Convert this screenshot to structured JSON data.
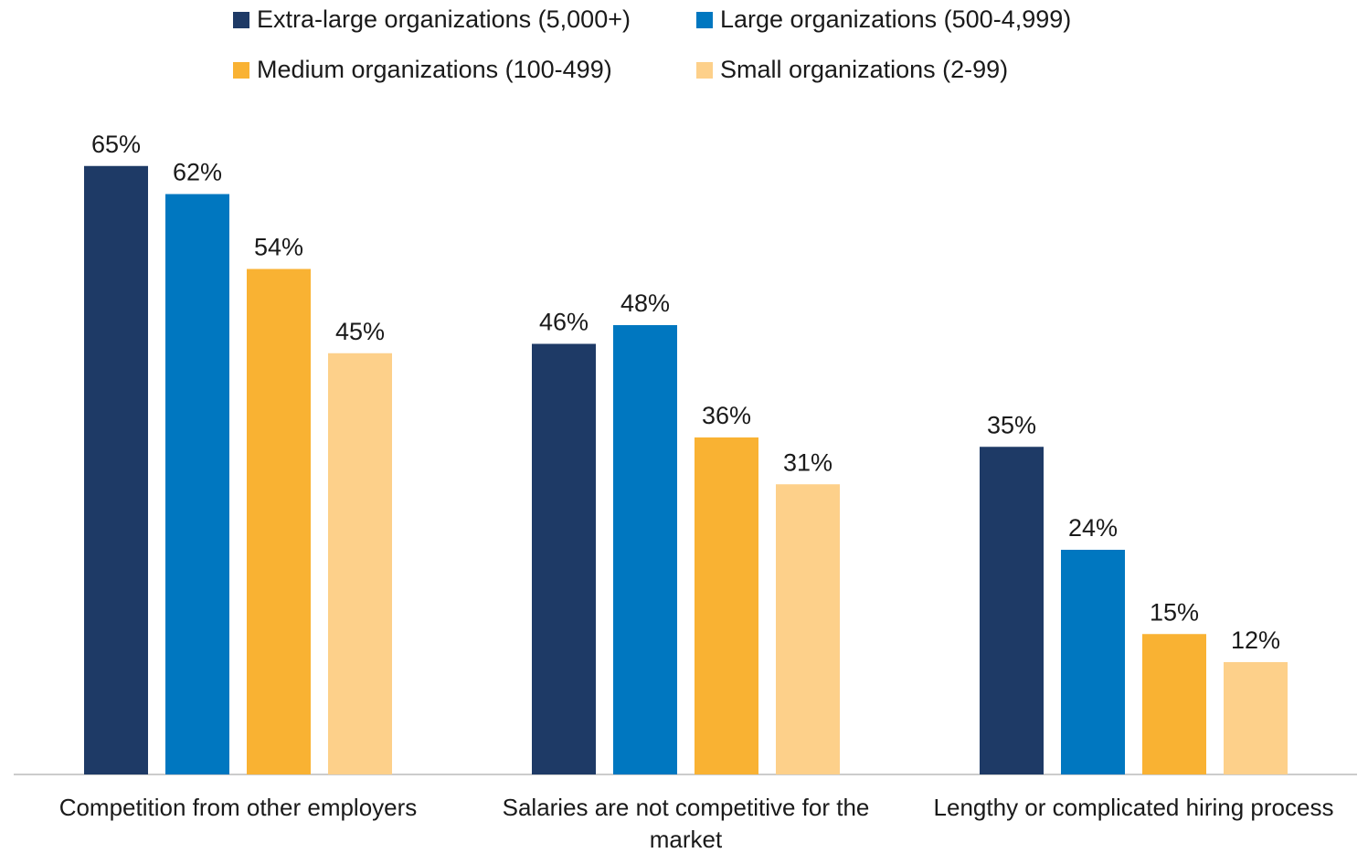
{
  "chart_data": {
    "type": "bar",
    "categories": [
      "Competition from other employers",
      "Salaries are not competitive for the market",
      "Lengthy or complicated hiring process"
    ],
    "series": [
      {
        "name": "Extra-large organizations (5,000+)",
        "color": "#1e3a66",
        "values": [
          65,
          46,
          35
        ],
        "value_labels": [
          "65%",
          "46%",
          "35%"
        ]
      },
      {
        "name": "Large organizations (500-4,999)",
        "color": "#0077c0",
        "values": [
          62,
          48,
          24
        ],
        "value_labels": [
          "62%",
          "48%",
          "24%"
        ]
      },
      {
        "name": "Medium organizations (100-499)",
        "color": "#f9b233",
        "values": [
          54,
          36,
          15
        ],
        "value_labels": [
          "54%",
          "36%",
          "15%"
        ]
      },
      {
        "name": "Small organizations (2-99)",
        "color": "#fdd08a",
        "values": [
          45,
          31,
          12
        ],
        "value_labels": [
          "45%",
          "31%",
          "12%"
        ]
      }
    ]
  }
}
